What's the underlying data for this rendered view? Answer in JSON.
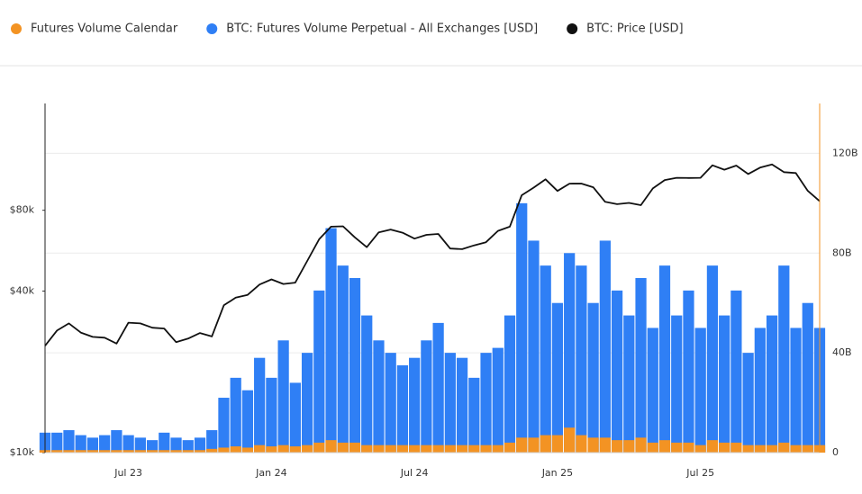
{
  "chart_data": {
    "type": "bar",
    "categories": [
      null,
      null,
      null,
      null,
      null,
      null,
      null,
      "Jul 23",
      null,
      null,
      null,
      null,
      null,
      null,
      null,
      null,
      null,
      null,
      null,
      "Jan 24",
      null,
      null,
      null,
      null,
      null,
      null,
      null,
      null,
      null,
      null,
      null,
      "Jul 24",
      null,
      null,
      null,
      null,
      null,
      null,
      null,
      null,
      null,
      null,
      null,
      "Jan 25",
      null,
      null,
      null,
      null,
      null,
      null,
      null,
      null,
      null,
      null,
      null,
      "Jul 25",
      null,
      null,
      null,
      null,
      null,
      null,
      null,
      null,
      null,
      null
    ],
    "series": [
      {
        "name": "Futures Volume Calendar",
        "color": "#f39323",
        "type": "bar",
        "axis": "y2",
        "values": [
          1,
          1,
          1,
          1,
          1,
          1,
          1,
          1,
          1,
          1,
          1,
          1,
          1,
          1,
          1.5,
          2,
          2.5,
          2,
          3,
          2.5,
          3,
          2.5,
          3,
          4,
          5,
          4,
          4,
          3,
          3,
          3,
          3,
          3,
          3,
          3,
          3,
          3,
          3,
          3,
          3,
          4,
          6,
          6,
          7,
          7,
          10,
          7,
          6,
          6,
          5,
          5,
          6,
          4,
          5,
          4,
          4,
          3,
          5,
          4,
          4,
          3,
          3,
          3,
          4,
          3,
          3,
          3
        ]
      },
      {
        "name": "BTC: Futures Volume Perpetual - All Exchanges [USD]",
        "color": "#2f7ff5",
        "type": "bar",
        "axis": "y2",
        "values": [
          8,
          8,
          9,
          7,
          6,
          7,
          9,
          7,
          6,
          5,
          8,
          6,
          5,
          6,
          9,
          22,
          30,
          25,
          38,
          30,
          45,
          28,
          40,
          65,
          90,
          75,
          70,
          55,
          45,
          40,
          35,
          38,
          45,
          52,
          40,
          38,
          30,
          40,
          42,
          55,
          100,
          85,
          75,
          60,
          80,
          75,
          60,
          85,
          65,
          55,
          70,
          50,
          75,
          55,
          65,
          50,
          75,
          55,
          65,
          40,
          50,
          55,
          75,
          50,
          60,
          50
        ]
      },
      {
        "name": "BTC: Price [USD]",
        "color": "#111111",
        "type": "line",
        "values": [
          25000,
          28500,
          30300,
          28000,
          27000,
          26800,
          25500,
          30500,
          30300,
          29200,
          29000,
          25800,
          26600,
          27900,
          27100,
          35400,
          37800,
          38700,
          42300,
          44200,
          42500,
          43000,
          51800,
          62400,
          69500,
          69700,
          63400,
          58300,
          66200,
          67800,
          66000,
          62700,
          64800,
          65300,
          57600,
          57300,
          59200,
          60800,
          67000,
          69500,
          91000,
          97200,
          104300,
          94400,
          100500,
          100600,
          97500,
          86000,
          84300,
          85200,
          83600,
          96500,
          103700,
          105700,
          105500,
          105700,
          117700,
          113300,
          117400,
          109200,
          115300,
          118600,
          111000,
          110100,
          94500,
          86500
        ]
      }
    ],
    "ylog": true,
    "ylim": [
      10000,
      200000
    ],
    "yticks": [
      {
        "value": 10000,
        "label": "$10k"
      },
      {
        "value": 40000,
        "label": "$40k"
      },
      {
        "value": 80000,
        "label": "$80k"
      }
    ],
    "y2lim": [
      0,
      140
    ],
    "y2ticks": [
      0,
      {
        "value": 40,
        "label": "40B"
      },
      {
        "value": 80,
        "label": "80B"
      },
      {
        "value": 120,
        "label": "120B"
      }
    ],
    "grid": true,
    "y2_axis_color": "#f39323"
  }
}
